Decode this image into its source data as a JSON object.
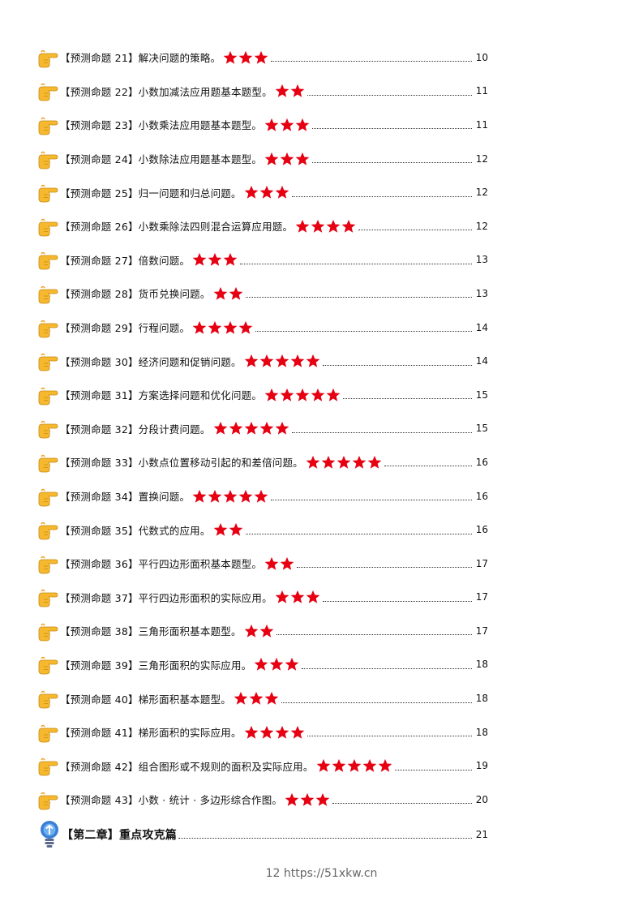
{
  "entries": [
    {
      "title": "【预测命题 21】解决问题的策略。",
      "stars": 3,
      "page": "10"
    },
    {
      "title": "【预测命题 22】小数加减法应用题基本题型。",
      "stars": 2,
      "page": "11"
    },
    {
      "title": "【预测命题 23】小数乘法应用题基本题型。",
      "stars": 3,
      "page": "11"
    },
    {
      "title": "【预测命题 24】小数除法应用题基本题型。",
      "stars": 3,
      "page": "12"
    },
    {
      "title": "【预测命题 25】归一问题和归总问题。",
      "stars": 3,
      "page": "12"
    },
    {
      "title": "【预测命题 26】小数乘除法四则混合运算应用题。",
      "stars": 4,
      "page": "12"
    },
    {
      "title": "【预测命题 27】倍数问题。",
      "stars": 3,
      "page": "13"
    },
    {
      "title": "【预测命题 28】货币兑换问题。",
      "stars": 2,
      "page": "13"
    },
    {
      "title": "【预测命题 29】行程问题。",
      "stars": 4,
      "page": "14"
    },
    {
      "title": "【预测命题 30】经济问题和促销问题。",
      "stars": 5,
      "page": "14"
    },
    {
      "title": "【预测命题 31】方案选择问题和优化问题。",
      "stars": 5,
      "page": "15"
    },
    {
      "title": "【预测命题 32】分段计费问题。",
      "stars": 5,
      "page": "15"
    },
    {
      "title": "【预测命题 33】小数点位置移动引起的和差倍问题。",
      "stars": 5,
      "page": "16"
    },
    {
      "title": "【预测命题 34】置换问题。",
      "stars": 5,
      "page": "16"
    },
    {
      "title": "【预测命题 35】代数式的应用。",
      "stars": 2,
      "page": "16"
    },
    {
      "title": "【预测命题 36】平行四边形面积基本题型。",
      "stars": 2,
      "page": "17"
    },
    {
      "title": "【预测命题 37】平行四边形面积的实际应用。",
      "stars": 3,
      "page": "17"
    },
    {
      "title": "【预测命题 38】三角形面积基本题型。",
      "stars": 2,
      "page": "17"
    },
    {
      "title": "【预测命题 39】三角形面积的实际应用。",
      "stars": 3,
      "page": "18"
    },
    {
      "title": "【预测命题 40】梯形面积基本题型。",
      "stars": 3,
      "page": "18"
    },
    {
      "title": "【预测命题 41】梯形面积的实际应用。",
      "stars": 4,
      "page": "18"
    },
    {
      "title": "【预测命题 42】组合图形或不规则的面积及实际应用。",
      "stars": 5,
      "page": "19"
    },
    {
      "title": "【预测命题 43】小数 · 统计 · 多边形综合作图。",
      "stars": 3,
      "page": "20"
    }
  ],
  "chapter": {
    "title": "【第二章】重点攻克篇",
    "page": "21"
  },
  "footer": "12 https://51xkw.cn",
  "colors": {
    "star": "#e60012",
    "hand": "#f5b82e",
    "bulb": "#3a7fd5"
  },
  "icons": {
    "entry": "pointing-hand-icon",
    "star": "star-icon",
    "chapter": "lightbulb-icon"
  }
}
